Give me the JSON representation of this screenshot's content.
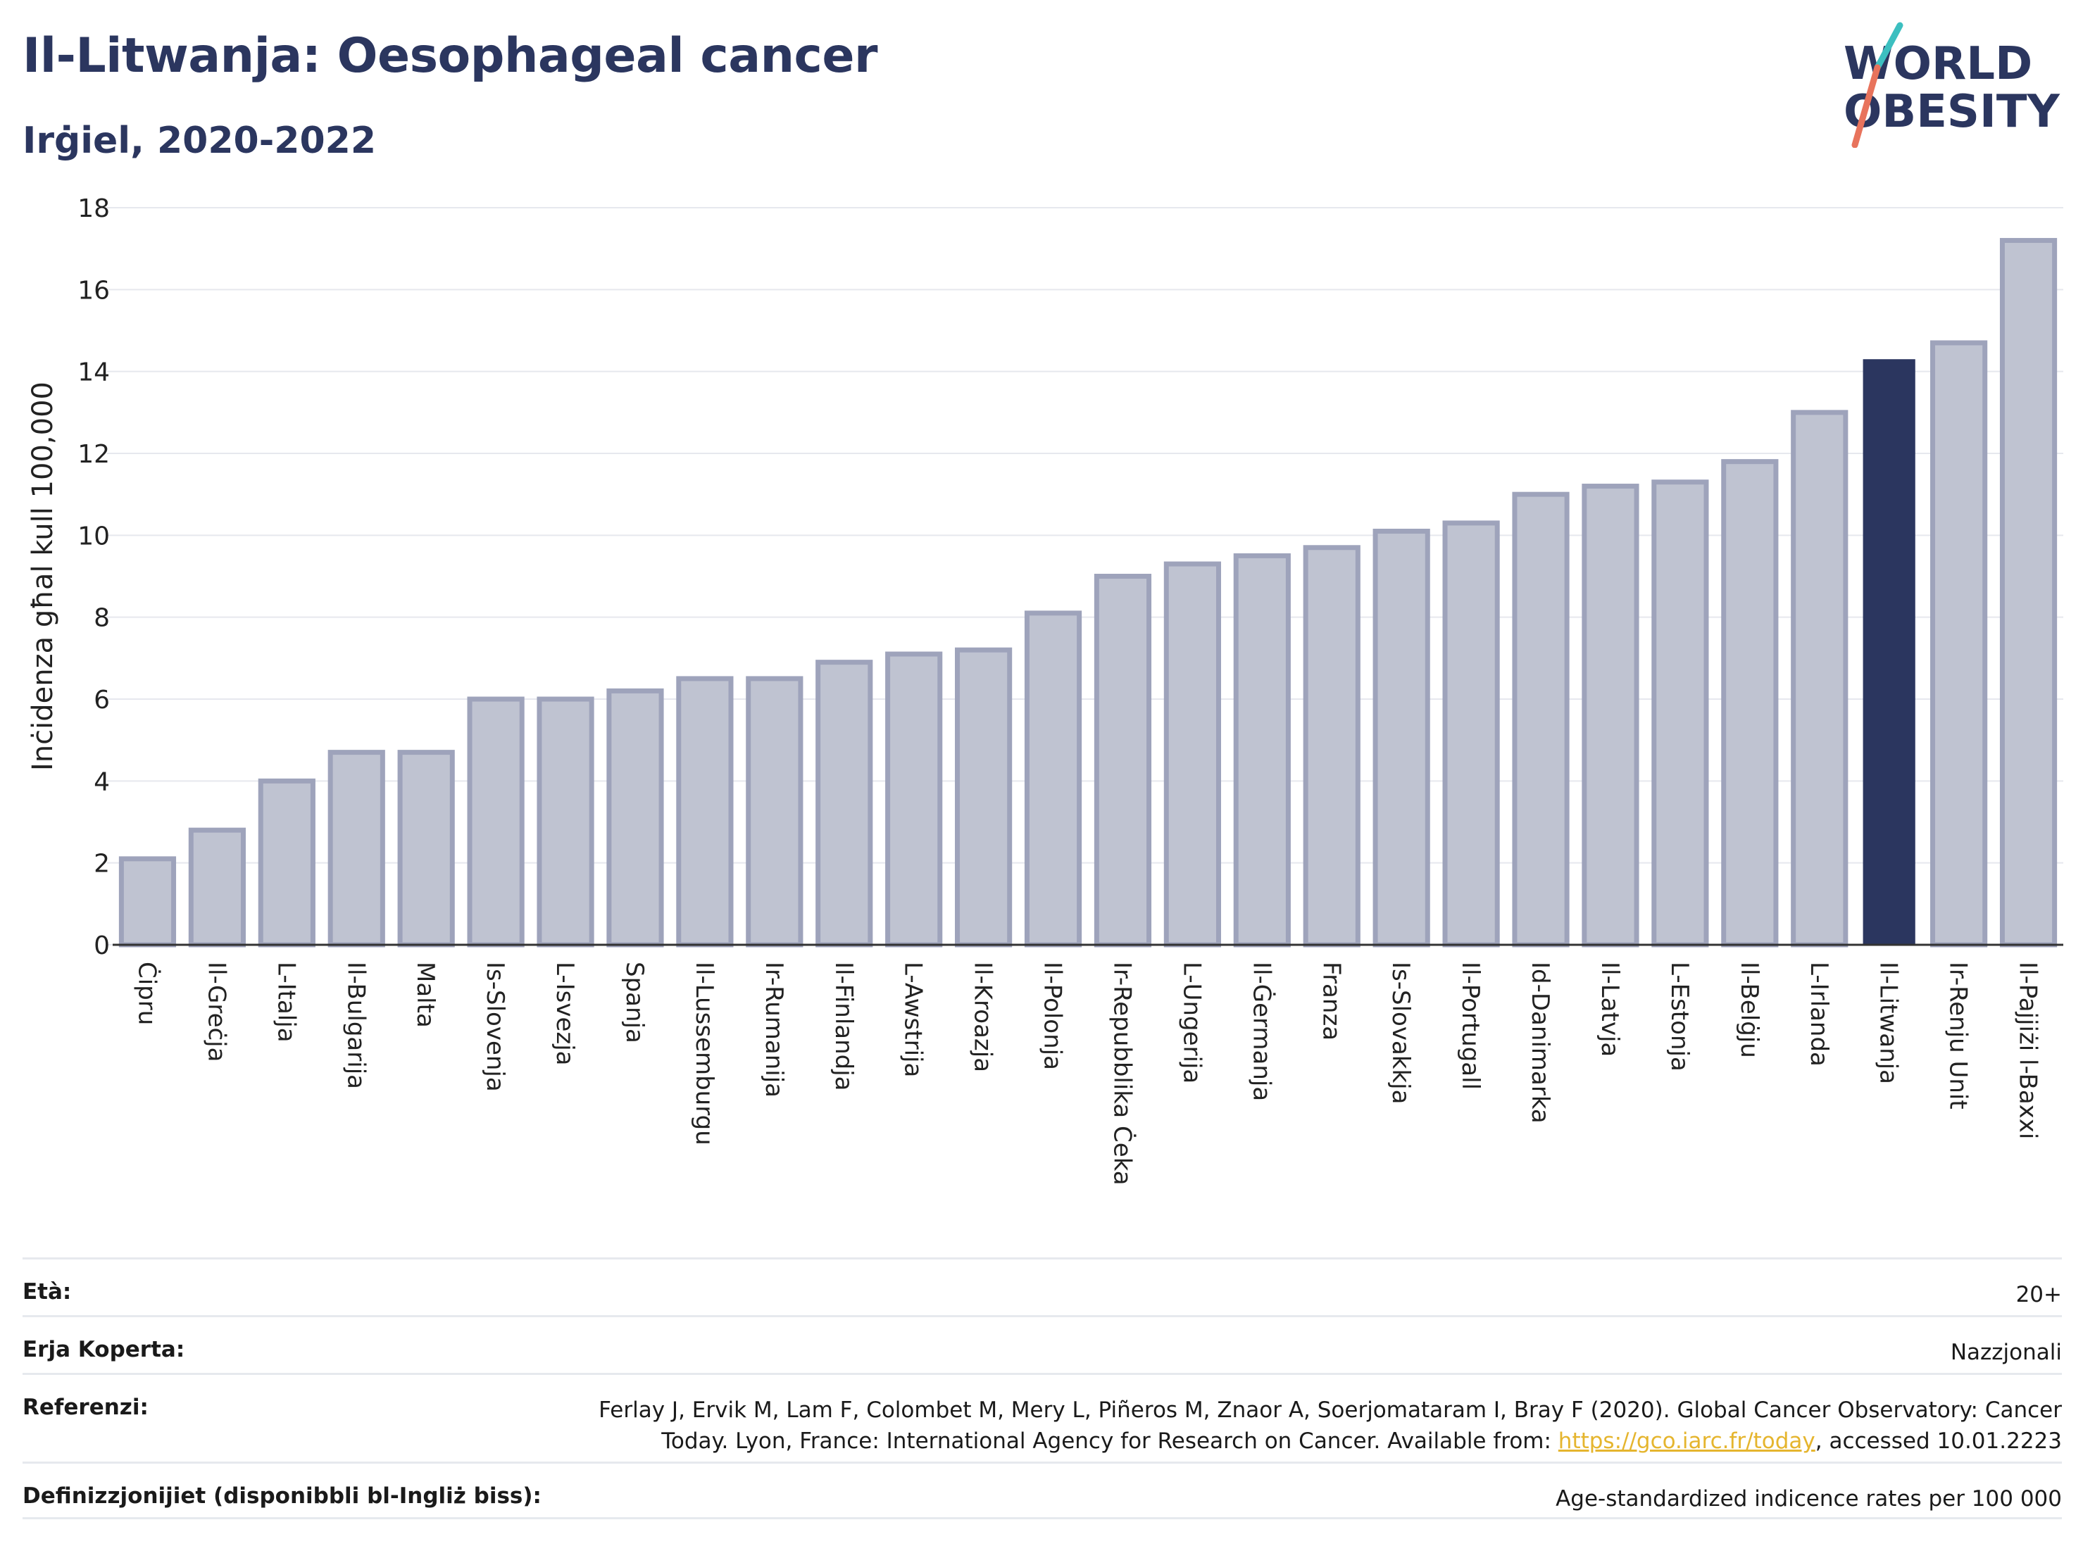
{
  "header": {
    "title": "Il-Litwanja: Oesophageal cancer",
    "subtitle": "Irġiel, 2020-2022"
  },
  "logo": {
    "line1": "WORLD",
    "line2": "OBESITY",
    "colors": {
      "text": "#2b365f",
      "slash_top": "#3cbfc0",
      "slash_bottom": "#e8735c"
    }
  },
  "colors": {
    "bar_default": "#bfc3d1",
    "bar_default_border": "#9ea3bb",
    "bar_highlight": "#2b365f",
    "grid": "#e6e8ee",
    "axis": "#333333"
  },
  "chart_data": {
    "type": "bar",
    "title": "Il-Litwanja: Oesophageal cancer",
    "subtitle": "Irġiel, 2020-2022",
    "xlabel": "",
    "ylabel": "Inċidenza għal kull 100,000",
    "ylim": [
      0,
      18
    ],
    "yticks": [
      0,
      2,
      4,
      6,
      8,
      10,
      12,
      14,
      16,
      18
    ],
    "grid": true,
    "legend": "none",
    "highlight": "Il-Litwanja",
    "categories": [
      "Ċipru",
      "Il-Greċja",
      "L-Italja",
      "Il-Bulgarija",
      "Malta",
      "Is-Slovenja",
      "L-Isvezja",
      "Spanja",
      "Il-Lussemburgu",
      "Ir-Rumanija",
      "Il-Finlandja",
      "L-Awstrija",
      "Il-Kroazja",
      "Il-Polonja",
      "Ir-Repubblika Ċeka",
      "L-Ungerija",
      "Il-Ġermanja",
      "Franza",
      "Is-Slovakkja",
      "Il-Portugall",
      "Id-Danimarka",
      "Il-Latvja",
      "L-Estonja",
      "Il-Belġju",
      "L-Irlanda",
      "Il-Litwanja",
      "Ir-Renju Unit",
      "Il-Pajjiżi l-Baxxi"
    ],
    "values": [
      2.1,
      2.8,
      4.0,
      4.7,
      4.7,
      6.0,
      6.0,
      6.2,
      6.5,
      6.5,
      6.9,
      7.1,
      7.2,
      8.1,
      9.0,
      9.3,
      9.5,
      9.7,
      10.1,
      10.3,
      11.0,
      11.2,
      11.3,
      11.8,
      13.0,
      14.3,
      14.7,
      17.2
    ]
  },
  "meta": {
    "age_label": "Età:",
    "age_value": "20+",
    "area_label": "Erja Koperta:",
    "area_value": "Nazzjonali",
    "ref_label": "Referenzi:",
    "ref_text_before": "Ferlay J, Ervik M, Lam F, Colombet M, Mery L, Piñeros M, Znaor A, Soerjomataram I, Bray F (2020). Global Cancer Observatory: Cancer Today. Lyon, France: International Agency for Research on Cancer. Available from: ",
    "ref_link": "https://gco.iarc.fr/today",
    "ref_text_after": ", accessed 10.01.2223",
    "def_label": "Definizzjonijiet (disponibbli bl-Ingliż biss):",
    "def_value": "Age-standardized indicence rates per 100 000"
  }
}
